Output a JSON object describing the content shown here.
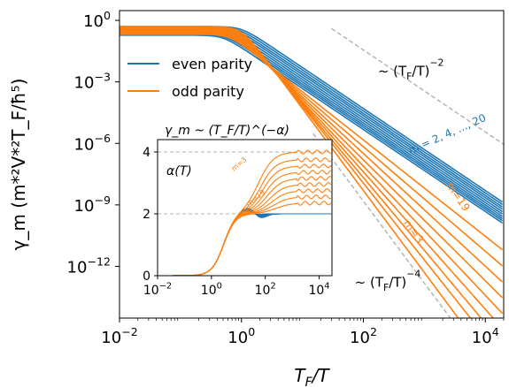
{
  "chart_data": [
    {
      "type": "line",
      "xscale": "log",
      "yscale": "log",
      "xlim": [
        0.01,
        20000
      ],
      "ylim": [
        3e-15,
        3
      ],
      "xlabel_base": "T",
      "xlabel_sub": "F",
      "xlabel_tail": "/T",
      "ylabel": "γ_m (m*²V*²T_F/ħ⁵)",
      "xticks": [
        {
          "value": 0.01,
          "base": "10",
          "exp": "−2"
        },
        {
          "value": 1,
          "base": "10",
          "exp": "0"
        },
        {
          "value": 100,
          "base": "10",
          "exp": "2"
        },
        {
          "value": 10000,
          "base": "10",
          "exp": "4"
        }
      ],
      "yticks": [
        {
          "value": 1,
          "base": "10",
          "exp": "0"
        },
        {
          "value": 0.001,
          "base": "10",
          "exp": "−3"
        },
        {
          "value": 1e-06,
          "base": "10",
          "exp": "−6"
        },
        {
          "value": 1e-09,
          "base": "10",
          "exp": "−9"
        },
        {
          "value": 1e-12,
          "base": "10",
          "exp": "−12"
        }
      ],
      "legend": {
        "placement": "upper-left",
        "entries": [
          {
            "label": "even parity",
            "color": "#1f77b4"
          },
          {
            "label": "odd parity",
            "color": "#ff7f0e"
          }
        ]
      },
      "colors": {
        "even": "#1f77b4",
        "odd": "#ff7f0e",
        "reference": "#b0b0b0"
      },
      "series_groups": [
        {
          "parity": "even",
          "color": "#1f77b4",
          "curves": [
            {
              "plateau": 0.5,
              "exponent": 2.0,
              "scale": 1.0
            },
            {
              "plateau": 0.44,
              "exponent": 2.0,
              "scale": 0.93
            },
            {
              "plateau": 0.39,
              "exponent": 2.0,
              "scale": 0.86
            },
            {
              "plateau": 0.35,
              "exponent": 2.0,
              "scale": 0.8
            },
            {
              "plateau": 0.31,
              "exponent": 2.0,
              "scale": 0.74
            },
            {
              "plateau": 0.28,
              "exponent": 2.0,
              "scale": 0.68
            },
            {
              "plateau": 0.25,
              "exponent": 2.0,
              "scale": 0.63
            },
            {
              "plateau": 0.23,
              "exponent": 2.0,
              "scale": 0.58
            },
            {
              "plateau": 0.21,
              "exponent": 2.0,
              "scale": 0.54
            },
            {
              "plateau": 0.19,
              "exponent": 2.0,
              "scale": 0.5
            }
          ]
        },
        {
          "parity": "odd",
          "color": "#ff7f0e",
          "curves": [
            {
              "plateau": 0.5,
              "exponent": 4.0,
              "scale": 1.0
            },
            {
              "plateau": 0.44,
              "exponent": 3.75,
              "scale": 0.95
            },
            {
              "plateau": 0.39,
              "exponent": 3.55,
              "scale": 0.9
            },
            {
              "plateau": 0.35,
              "exponent": 3.35,
              "scale": 0.85
            },
            {
              "plateau": 0.31,
              "exponent": 3.15,
              "scale": 0.8
            },
            {
              "plateau": 0.28,
              "exponent": 2.95,
              "scale": 0.76
            },
            {
              "plateau": 0.25,
              "exponent": 2.75,
              "scale": 0.72
            },
            {
              "plateau": 0.23,
              "exponent": 2.55,
              "scale": 0.68
            },
            {
              "plateau": 0.21,
              "exponent": 2.35,
              "scale": 0.64
            }
          ]
        }
      ],
      "reference_lines": [
        {
          "exponent": 2,
          "x_from": 30,
          "x_to": 20000,
          "y_at_start": 0.4
        },
        {
          "exponent": 4,
          "x_from": 15,
          "x_to": 4000,
          "y_at_start": 3e-06
        }
      ],
      "annotations": [
        {
          "id": "ann-ref2",
          "parts": [
            {
              "t": "~ (T"
            },
            {
              "t": "F",
              "sub": true
            },
            {
              "t": "/T)"
            },
            {
              "t": "−2",
              "sup": true
            }
          ],
          "x": 600,
          "y": 0.002,
          "rotate": 0
        },
        {
          "id": "ann-ref4",
          "parts": [
            {
              "t": "~ (T"
            },
            {
              "t": "F",
              "sub": true
            },
            {
              "t": "/T)"
            },
            {
              "t": "−4",
              "sup": true
            }
          ],
          "x": 250,
          "y": 1e-13,
          "rotate": 0
        },
        {
          "id": "ann-even-range",
          "parts": [
            {
              "t": "m = 2, 4, ..., 20"
            }
          ],
          "x": 2500,
          "y": 2e-06,
          "rotate": 24,
          "color": "#1f77b4",
          "size": 12
        },
        {
          "id": "ann-m19",
          "parts": [
            {
              "t": "m=19"
            }
          ],
          "x": 3200,
          "y": 2e-09,
          "rotate": -55,
          "color": "#ff7f0e",
          "size": 12
        },
        {
          "id": "ann-m3",
          "parts": [
            {
              "t": "m=3"
            }
          ],
          "x": 600,
          "y": 4e-11,
          "rotate": -55,
          "color": "#ff7f0e",
          "size": 12
        }
      ]
    },
    {
      "type": "line",
      "title": "γ_m ~ (T_F/T)^(−α)",
      "inner_label": "α(T)",
      "xscale": "log",
      "xlim": [
        0.01,
        30000
      ],
      "ylim": [
        0,
        4.4
      ],
      "xticks": [
        {
          "value": 0.01,
          "base": "10",
          "exp": "−2"
        },
        {
          "value": 1,
          "base": "10",
          "exp": "0"
        },
        {
          "value": 100,
          "base": "10",
          "exp": "2"
        },
        {
          "value": 10000,
          "base": "10",
          "exp": "4"
        }
      ],
      "yticks": [
        0,
        2,
        4
      ],
      "reference_levels": [
        2,
        4
      ],
      "even_final": 2.0,
      "odd_finals": [
        4.0,
        3.75,
        3.55,
        3.35,
        3.15,
        2.95,
        2.75,
        2.55,
        2.35
      ],
      "annotations": [
        {
          "id": "inset-m3",
          "text": "m=3",
          "x": 12,
          "y": 3.55,
          "color": "#ff7f0e",
          "rotate": -40
        },
        {
          "id": "inset-m19",
          "text": "m=19",
          "x": 50,
          "y": 2.45,
          "color": "#ff7f0e",
          "rotate": -40
        }
      ]
    }
  ]
}
